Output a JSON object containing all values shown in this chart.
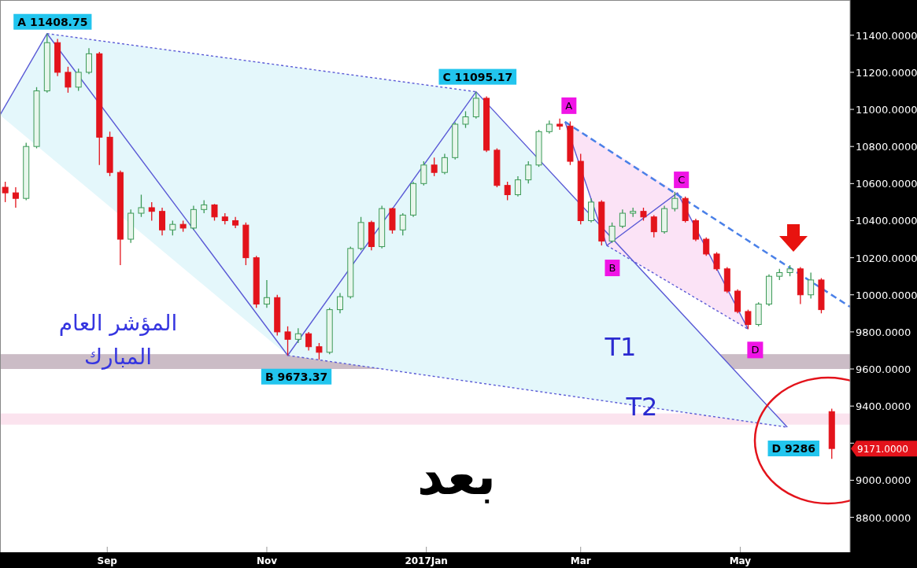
{
  "chart_data": {
    "type": "candlestick",
    "x": [
      "2016-07-24",
      "2016-07-28",
      "2016-08-01",
      "2016-08-05",
      "2016-08-09",
      "2016-08-13",
      "2016-08-17",
      "2016-08-21",
      "2016-08-25",
      "2016-08-29",
      "2016-09-02",
      "2016-09-06",
      "2016-09-10",
      "2016-09-14",
      "2016-09-18",
      "2016-09-22",
      "2016-09-26",
      "2016-09-30",
      "2016-10-04",
      "2016-10-08",
      "2016-10-12",
      "2016-10-16",
      "2016-10-20",
      "2016-10-24",
      "2016-10-28",
      "2016-11-01",
      "2016-11-05",
      "2016-11-09",
      "2016-11-13",
      "2016-11-17",
      "2016-11-21",
      "2016-11-25",
      "2016-11-29",
      "2016-12-03",
      "2016-12-07",
      "2016-12-11",
      "2016-12-15",
      "2016-12-19",
      "2016-12-23",
      "2016-12-27",
      "2016-12-31",
      "2017-01-04",
      "2017-01-08",
      "2017-01-12",
      "2017-01-16",
      "2017-01-20",
      "2017-01-24",
      "2017-01-28",
      "2017-02-01",
      "2017-02-05",
      "2017-02-09",
      "2017-02-13",
      "2017-02-17",
      "2017-02-21",
      "2017-02-25",
      "2017-03-01",
      "2017-03-05",
      "2017-03-09",
      "2017-03-13",
      "2017-03-17",
      "2017-03-21",
      "2017-03-25",
      "2017-03-29",
      "2017-04-02",
      "2017-04-06",
      "2017-04-10",
      "2017-04-14",
      "2017-04-18",
      "2017-04-22",
      "2017-04-26",
      "2017-04-30",
      "2017-05-04",
      "2017-05-08",
      "2017-05-12",
      "2017-05-16",
      "2017-05-20",
      "2017-05-24",
      "2017-05-28",
      "2017-06-01",
      "2017-06-05"
    ],
    "ohlc": [
      [
        10580,
        10610,
        10500,
        10550
      ],
      [
        10550,
        10580,
        10470,
        10520
      ],
      [
        10520,
        10820,
        10510,
        10800
      ],
      [
        10800,
        11120,
        10790,
        11100
      ],
      [
        11100,
        11408.75,
        11090,
        11360
      ],
      [
        11360,
        11380,
        11180,
        11200
      ],
      [
        11200,
        11230,
        11090,
        11120
      ],
      [
        11120,
        11220,
        11100,
        11200
      ],
      [
        11200,
        11330,
        11190,
        11300
      ],
      [
        11300,
        11310,
        10700,
        10850
      ],
      [
        10850,
        10880,
        10640,
        10660
      ],
      [
        10660,
        10670,
        10160,
        10300
      ],
      [
        10300,
        10460,
        10280,
        10440
      ],
      [
        10440,
        10540,
        10420,
        10470
      ],
      [
        10470,
        10500,
        10400,
        10450
      ],
      [
        10450,
        10470,
        10320,
        10350
      ],
      [
        10350,
        10400,
        10320,
        10380
      ],
      [
        10380,
        10400,
        10340,
        10360
      ],
      [
        10360,
        10480,
        10350,
        10460
      ],
      [
        10460,
        10510,
        10440,
        10485
      ],
      [
        10485,
        10490,
        10400,
        10420
      ],
      [
        10420,
        10440,
        10380,
        10400
      ],
      [
        10400,
        10420,
        10360,
        10376
      ],
      [
        10376,
        10390,
        10160,
        10200
      ],
      [
        10200,
        10210,
        9930,
        9950
      ],
      [
        9950,
        10080,
        9930,
        9985
      ],
      [
        9985,
        10000,
        9780,
        9800
      ],
      [
        9800,
        9830,
        9673.37,
        9760
      ],
      [
        9760,
        9820,
        9740,
        9790
      ],
      [
        9790,
        9800,
        9700,
        9720
      ],
      [
        9720,
        9740,
        9650,
        9690
      ],
      [
        9690,
        9930,
        9680,
        9920
      ],
      [
        9920,
        10010,
        9900,
        9990
      ],
      [
        9990,
        10260,
        9980,
        10250
      ],
      [
        10250,
        10420,
        10240,
        10390
      ],
      [
        10390,
        10400,
        10240,
        10260
      ],
      [
        10260,
        10480,
        10250,
        10465
      ],
      [
        10465,
        10470,
        10330,
        10350
      ],
      [
        10350,
        10440,
        10320,
        10430
      ],
      [
        10430,
        10610,
        10420,
        10600
      ],
      [
        10600,
        10720,
        10590,
        10700
      ],
      [
        10700,
        10740,
        10640,
        10660
      ],
      [
        10660,
        10760,
        10650,
        10740
      ],
      [
        10740,
        10930,
        10730,
        10920
      ],
      [
        10920,
        10990,
        10900,
        10960
      ],
      [
        10960,
        11095.17,
        10950,
        11060
      ],
      [
        11060,
        11070,
        10770,
        10780
      ],
      [
        10780,
        10790,
        10580,
        10590
      ],
      [
        10590,
        10610,
        10510,
        10540
      ],
      [
        10540,
        10640,
        10530,
        10620
      ],
      [
        10620,
        10720,
        10600,
        10700
      ],
      [
        10700,
        10890,
        10690,
        10880
      ],
      [
        10880,
        10940,
        10870,
        10920
      ],
      [
        10920,
        10950,
        10890,
        10910
      ],
      [
        10910,
        10935,
        10700,
        10720
      ],
      [
        10720,
        10760,
        10380,
        10400
      ],
      [
        10400,
        10520,
        10390,
        10500
      ],
      [
        10500,
        10510,
        10266,
        10290
      ],
      [
        10290,
        10390,
        10280,
        10370
      ],
      [
        10370,
        10460,
        10360,
        10440
      ],
      [
        10440,
        10470,
        10420,
        10450
      ],
      [
        10450,
        10470,
        10400,
        10420
      ],
      [
        10420,
        10430,
        10310,
        10340
      ],
      [
        10340,
        10480,
        10330,
        10465
      ],
      [
        10465,
        10555,
        10450,
        10520
      ],
      [
        10520,
        10530,
        10390,
        10400
      ],
      [
        10400,
        10410,
        10290,
        10300
      ],
      [
        10300,
        10310,
        10210,
        10220
      ],
      [
        10220,
        10230,
        10130,
        10140
      ],
      [
        10140,
        10150,
        10010,
        10020
      ],
      [
        10020,
        10030,
        9900,
        9910
      ],
      [
        9910,
        9920,
        9815,
        9840
      ],
      [
        9840,
        9960,
        9830,
        9950
      ],
      [
        9950,
        10110,
        9940,
        10100
      ],
      [
        10100,
        10140,
        10080,
        10120
      ],
      [
        10120,
        10160,
        10100,
        10140
      ],
      [
        10140,
        10150,
        9950,
        10000
      ],
      [
        10000,
        10120,
        9980,
        10080
      ],
      [
        10080,
        10090,
        9900,
        9920
      ],
      [
        9370,
        9386,
        9115,
        9171
      ]
    ],
    "series": [
      {
        "type": "line",
        "x": [
          "2016-07-22",
          "2016-08-09",
          "2016-11-09",
          "2017-01-20",
          "2017-05-19"
        ],
        "values": [
          10970,
          11408.75,
          9673.37,
          11095.17,
          9286
        ],
        "color": "#5b5bd6",
        "line_style": "solid"
      },
      {
        "type": "line",
        "x": [
          "2016-08-09",
          "2017-01-20"
        ],
        "values": [
          11408.75,
          11095.17
        ],
        "color": "#5b5bd6",
        "line_style": "dotted"
      },
      {
        "type": "line",
        "x": [
          "2016-11-09",
          "2017-05-19"
        ],
        "values": [
          9673.37,
          9286
        ],
        "color": "#5b5bd6",
        "line_style": "dotted"
      },
      {
        "type": "line",
        "x": [
          "2017-02-23",
          "2017-03-11",
          "2017-04-07",
          "2017-05-04"
        ],
        "values": [
          10933,
          10266,
          10550,
          9815
        ],
        "color": "#5b5bd6",
        "line_style": "solid"
      },
      {
        "type": "line",
        "x": [
          "2017-03-11",
          "2017-05-04"
        ],
        "values": [
          10266,
          9815
        ],
        "color": "#5b5bd6",
        "line_style": "dotted"
      },
      {
        "type": "line",
        "x": [
          "2017-02-23",
          "2017-06-12"
        ],
        "values": [
          10933,
          9935
        ],
        "color": "#4a80e8",
        "line_style": "dashed"
      }
    ],
    "bands": [
      {
        "axis": "y",
        "from": 9600,
        "to": 9680,
        "label": "T1",
        "color": "#cbbcc6"
      },
      {
        "axis": "y",
        "from": 9300,
        "to": 9360,
        "label": "T2",
        "color": "#fbe3ee"
      }
    ],
    "annotations": [
      {
        "text": "A 11408.75",
        "x": "2016-08-09",
        "y": 11408.75
      },
      {
        "text": "C 11095.17",
        "x": "2017-01-20",
        "y": 11095.17
      },
      {
        "text": "B 9673.37",
        "x": "2016-11-09",
        "y": 9673.37
      },
      {
        "text": "D 9286",
        "x": "2017-05-19",
        "y": 9286
      },
      {
        "text": "A",
        "x": "2017-02-23",
        "y": 10933
      },
      {
        "text": "B",
        "x": "2017-03-11",
        "y": 10266
      },
      {
        "text": "C",
        "x": "2017-04-07",
        "y": 10550
      },
      {
        "text": "D",
        "x": "2017-05-04",
        "y": 9815
      },
      "المؤشر العام\nالمبارك",
      "بعد",
      {
        "text": "9171.0000",
        "x": "2017-06-05",
        "y": 9171
      }
    ],
    "xlim": [
      "2016-07-22",
      "2017-06-12"
    ],
    "xticks": [
      {
        "value": "2016-09-01",
        "label": "Sep"
      },
      {
        "value": "2016-11-01",
        "label": "Nov"
      },
      {
        "value": "2017-01-01",
        "label": "2017Jan"
      },
      {
        "value": "2017-03-01",
        "label": "Mar"
      },
      {
        "value": "2017-05-01",
        "label": "May"
      }
    ],
    "ylim": [
      8620,
      11590
    ],
    "yticks": [
      {
        "value": 8800,
        "label": "8800.0000"
      },
      {
        "value": 9000,
        "label": "9000.0000"
      },
      {
        "value": 9200,
        "label": null
      },
      {
        "value": 9400,
        "label": "9400.0000"
      },
      {
        "value": 9600,
        "label": "9600.0000"
      },
      {
        "value": 9800,
        "label": "9800.0000"
      },
      {
        "value": 10000,
        "label": "10000.0000"
      },
      {
        "value": 10200,
        "label": "10200.0000"
      },
      {
        "value": 10400,
        "label": "10400.0000"
      },
      {
        "value": 10600,
        "label": "10600.0000"
      },
      {
        "value": 10800,
        "label": "10800.0000"
      },
      {
        "value": 11000,
        "label": "11000.0000"
      },
      {
        "value": 11200,
        "label": "11200.0000"
      },
      {
        "value": 11400,
        "label": "11400.0000"
      }
    ],
    "grid": false
  }
}
